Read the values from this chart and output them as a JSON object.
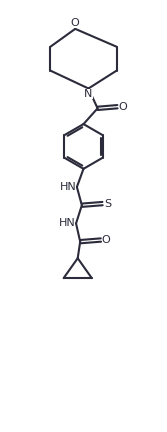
{
  "bg_color": "#ffffff",
  "line_color": "#2b2b3b",
  "text_color": "#2b2b3b",
  "line_width": 1.5,
  "figsize": [
    1.67,
    4.32
  ],
  "dpi": 100,
  "xlim": [
    0,
    10
  ],
  "ylim": [
    0,
    26
  ]
}
